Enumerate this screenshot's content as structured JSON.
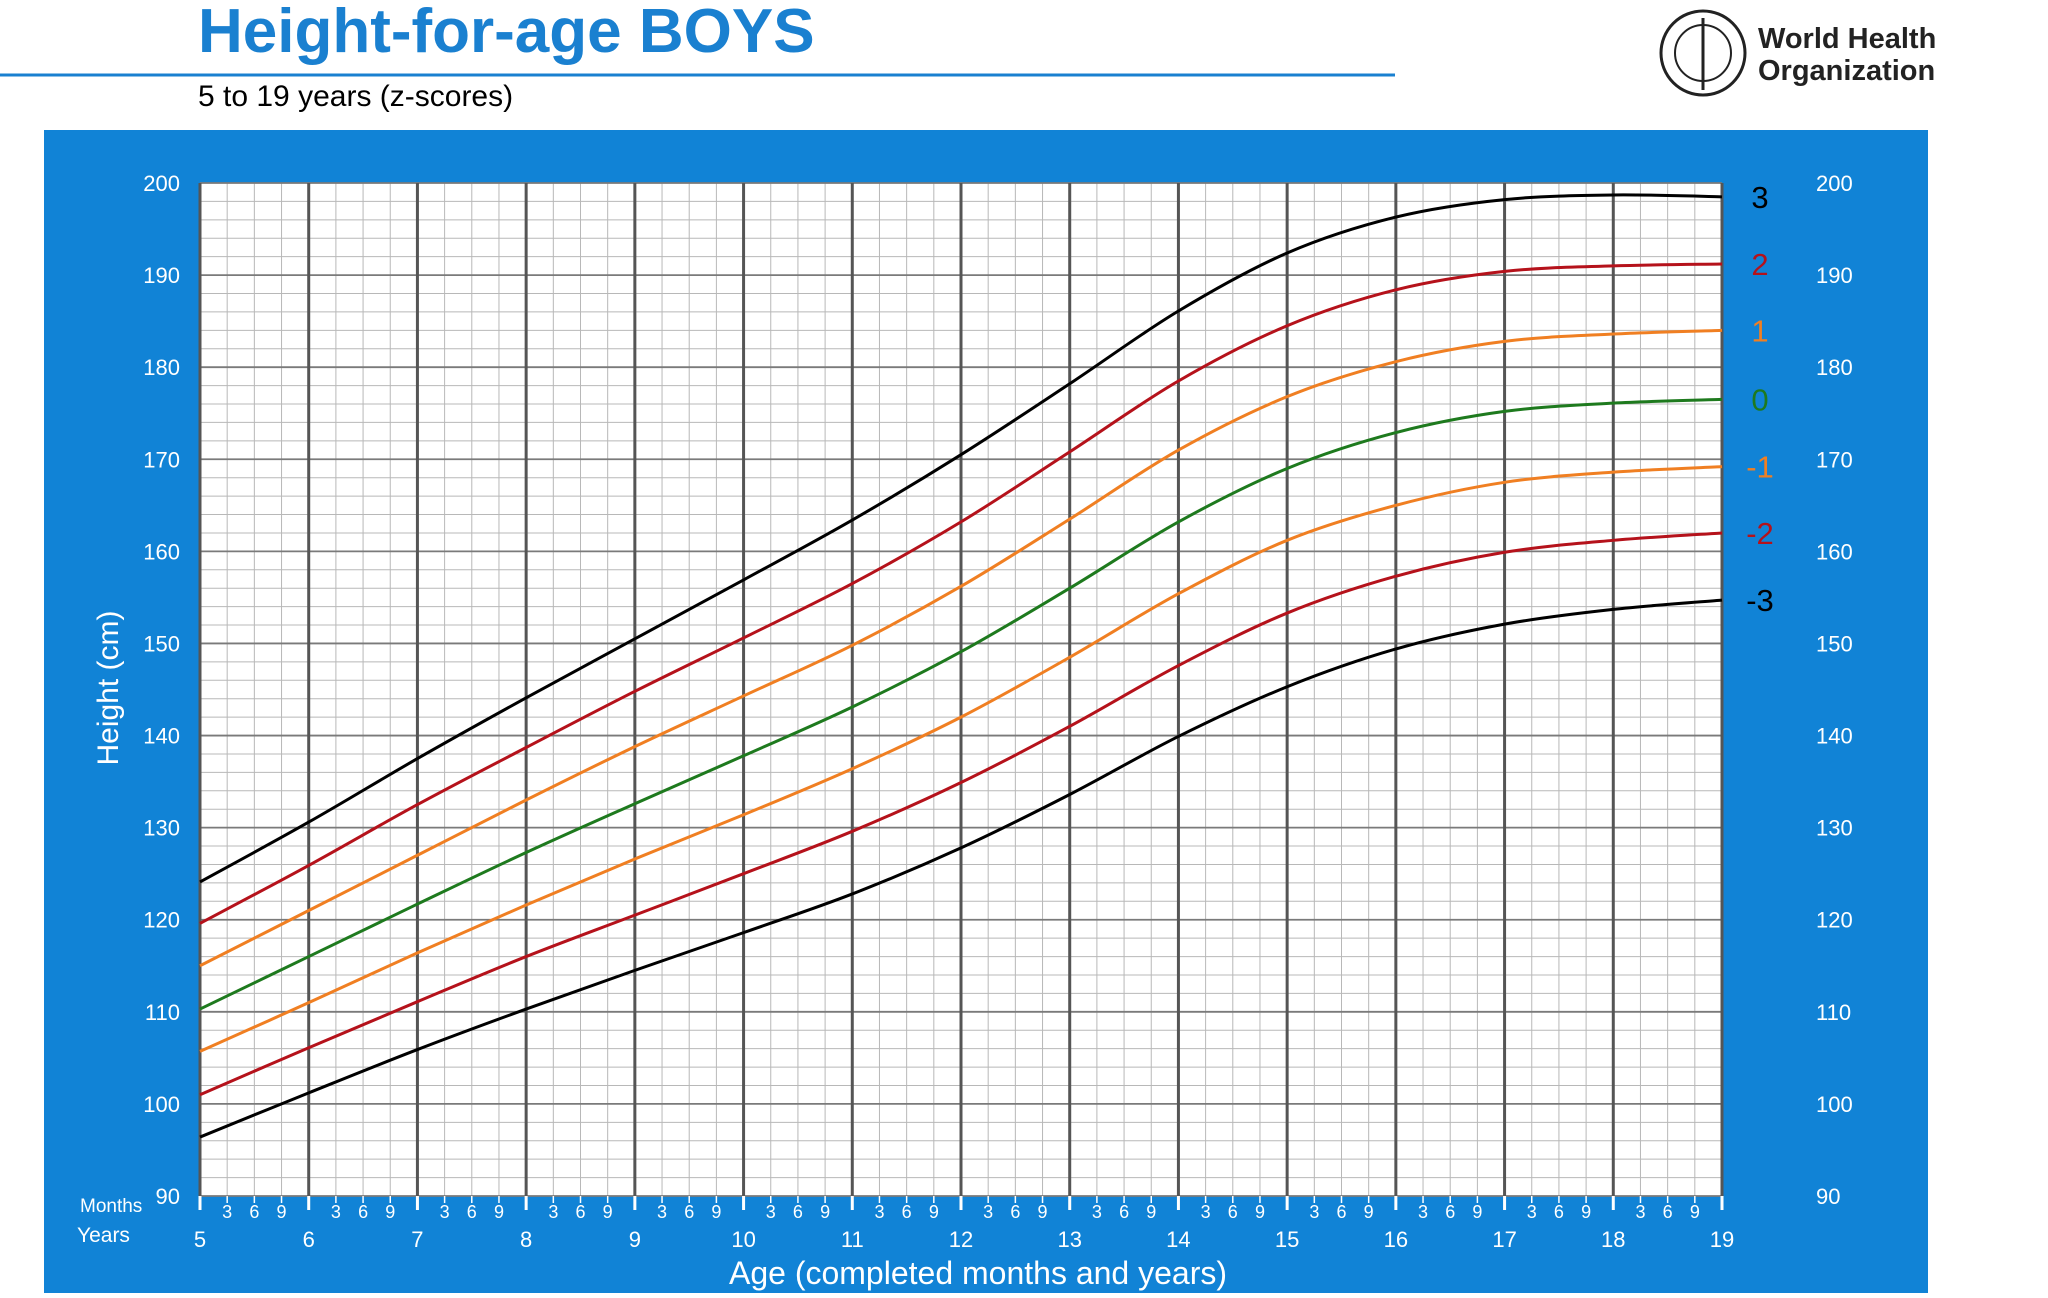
{
  "chart_data": {
    "type": "line",
    "title": "Height-for-age  BOYS",
    "subtitle": "5 to 19 years (z-scores)",
    "x_label": "Age (completed months and years)",
    "y_label": "Height (cm)",
    "months_label": "Months",
    "years_label": "Years",
    "x": [
      5,
      6,
      7,
      8,
      9,
      10,
      11,
      12,
      13,
      14,
      15,
      16,
      17,
      18,
      19
    ],
    "series": [
      {
        "name": "3",
        "color": "#000000",
        "values": [
          124.1,
          130.6,
          137.5,
          144.1,
          150.5,
          156.9,
          163.4,
          170.5,
          178.2,
          186.1,
          192.4,
          196.3,
          198.2,
          198.7,
          198.5
        ]
      },
      {
        "name": "2",
        "color": "#b5121b",
        "values": [
          119.6,
          125.9,
          132.5,
          138.7,
          144.8,
          150.6,
          156.5,
          163.2,
          170.8,
          178.5,
          184.5,
          188.4,
          190.4,
          191.0,
          191.2
        ]
      },
      {
        "name": "1",
        "color": "#f07f22",
        "values": [
          115.0,
          121.0,
          127.0,
          133.0,
          138.8,
          144.3,
          149.8,
          156.2,
          163.5,
          171.0,
          176.8,
          180.6,
          182.8,
          183.6,
          184.0
        ]
      },
      {
        "name": "0",
        "color": "#1e7a1e",
        "values": [
          110.3,
          116.0,
          121.7,
          127.3,
          132.6,
          137.8,
          143.1,
          149.1,
          156.0,
          163.2,
          169.0,
          172.9,
          175.2,
          176.1,
          176.5
        ]
      },
      {
        "name": "-1",
        "color": "#f07f22",
        "values": [
          105.7,
          111.0,
          116.4,
          121.6,
          126.6,
          131.4,
          136.4,
          142.0,
          148.5,
          155.4,
          161.2,
          165.0,
          167.5,
          168.6,
          169.2
        ]
      },
      {
        "name": "-2",
        "color": "#b5121b",
        "values": [
          101.0,
          106.1,
          111.1,
          116.0,
          120.5,
          125.0,
          129.6,
          134.9,
          141.0,
          147.6,
          153.3,
          157.3,
          159.9,
          161.2,
          162.0
        ]
      },
      {
        "name": "-3",
        "color": "#000000",
        "values": [
          96.4,
          101.2,
          105.9,
          110.3,
          114.5,
          118.6,
          122.8,
          127.8,
          133.6,
          139.9,
          145.3,
          149.4,
          152.1,
          153.7,
          154.7
        ]
      }
    ],
    "xlim": [
      5,
      19
    ],
    "xticks": [
      5,
      6,
      7,
      8,
      9,
      10,
      11,
      12,
      13,
      14,
      15,
      16,
      17,
      18,
      19
    ],
    "month_ticks": [
      {
        "value": 5.25,
        "label": "3"
      },
      {
        "value": 5.5,
        "label": "6"
      },
      {
        "value": 5.75,
        "label": "9"
      },
      {
        "value": 6.25,
        "label": "3"
      },
      {
        "value": 6.5,
        "label": "6"
      },
      {
        "value": 6.75,
        "label": "9"
      },
      {
        "value": 7.25,
        "label": "3"
      },
      {
        "value": 7.5,
        "label": "6"
      },
      {
        "value": 7.75,
        "label": "9"
      },
      {
        "value": 8.25,
        "label": "3"
      },
      {
        "value": 8.5,
        "label": "6"
      },
      {
        "value": 8.75,
        "label": "9"
      },
      {
        "value": 9.25,
        "label": "3"
      },
      {
        "value": 9.5,
        "label": "6"
      },
      {
        "value": 9.75,
        "label": "9"
      },
      {
        "value": 10.25,
        "label": "3"
      },
      {
        "value": 10.5,
        "label": "6"
      },
      {
        "value": 10.75,
        "label": "9"
      },
      {
        "value": 11.25,
        "label": "3"
      },
      {
        "value": 11.5,
        "label": "6"
      },
      {
        "value": 11.75,
        "label": "9"
      },
      {
        "value": 12.25,
        "label": "3"
      },
      {
        "value": 12.5,
        "label": "6"
      },
      {
        "value": 12.75,
        "label": "9"
      },
      {
        "value": 13.25,
        "label": "3"
      },
      {
        "value": 13.5,
        "label": "6"
      },
      {
        "value": 13.75,
        "label": "9"
      },
      {
        "value": 14.25,
        "label": "3"
      },
      {
        "value": 14.5,
        "label": "6"
      },
      {
        "value": 14.75,
        "label": "9"
      },
      {
        "value": 15.25,
        "label": "3"
      },
      {
        "value": 15.5,
        "label": "6"
      },
      {
        "value": 15.75,
        "label": "9"
      },
      {
        "value": 16.25,
        "label": "3"
      },
      {
        "value": 16.5,
        "label": "6"
      },
      {
        "value": 16.75,
        "label": "9"
      },
      {
        "value": 17.25,
        "label": "3"
      },
      {
        "value": 17.5,
        "label": "6"
      },
      {
        "value": 17.75,
        "label": "9"
      },
      {
        "value": 18.25,
        "label": "3"
      },
      {
        "value": 18.5,
        "label": "6"
      },
      {
        "value": 18.75,
        "label": "9"
      }
    ],
    "ylim": [
      90,
      200
    ],
    "yticks": [
      90,
      100,
      110,
      120,
      130,
      140,
      150,
      160,
      170,
      180,
      190,
      200
    ],
    "yminorticks": [
      92,
      94,
      96,
      98,
      102,
      104,
      106,
      108,
      112,
      114,
      116,
      118,
      122,
      124,
      126,
      128,
      132,
      134,
      136,
      138,
      142,
      144,
      146,
      148,
      152,
      154,
      156,
      158,
      162,
      164,
      166,
      168,
      172,
      174,
      176,
      178,
      182,
      184,
      186,
      188,
      192,
      194,
      196,
      198
    ],
    "y2lim": [
      90,
      200
    ],
    "y2ticks": [
      90,
      100,
      110,
      120,
      130,
      140,
      150,
      160,
      170,
      180,
      190,
      200
    ],
    "grid": true
  },
  "logo": {
    "lines": [
      "World Health",
      "Organization"
    ]
  }
}
